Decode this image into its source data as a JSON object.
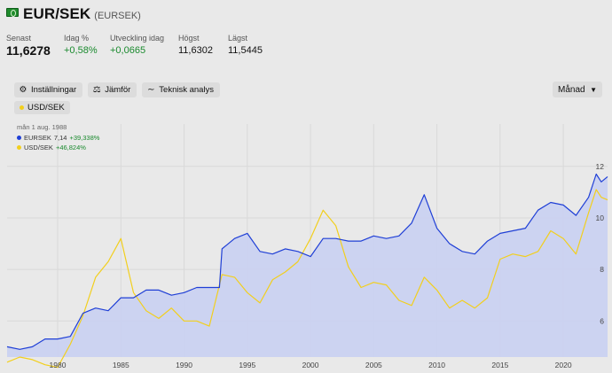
{
  "header": {
    "title": "EUR/SEK",
    "ticker": "(EURSEK)",
    "flag_icon": "money-flag-icon"
  },
  "stats": [
    {
      "label": "Senast",
      "value": "11,6278",
      "style": "big"
    },
    {
      "label": "Idag %",
      "value": "+0,58%",
      "style": "pos"
    },
    {
      "label": "Utveckling idag",
      "value": "+0,0665",
      "style": "pos"
    },
    {
      "label": "Högst",
      "value": "11,6302",
      "style": "plain"
    },
    {
      "label": "Lägst",
      "value": "11,5445",
      "style": "plain"
    }
  ],
  "toolbar": {
    "settings_label": "Inställningar",
    "compare_label": "Jämför",
    "technical_label": "Teknisk analys",
    "period_label": "Månad"
  },
  "compare_chip": {
    "label": "USD/SEK",
    "color": "#f2cf1d"
  },
  "legend": {
    "date": "mån 1 aug. 1988",
    "rows": [
      {
        "name": "EURSEK",
        "value": "7,14",
        "change": "+39,338%",
        "color": "#1f3fd6"
      },
      {
        "name": "USD/SEK",
        "value": "",
        "change": "+46,824%",
        "color": "#f2cf1d"
      }
    ]
  },
  "chart_data": {
    "type": "line",
    "x_unit": "year",
    "x_ticks": [
      1980,
      1985,
      1990,
      1995,
      2000,
      2005,
      2010,
      2015,
      2020
    ],
    "y_ticks": [
      6,
      8,
      10,
      12
    ],
    "xlim": [
      1976,
      2023.5
    ],
    "ylim": [
      4.6,
      13.3
    ],
    "grid": true,
    "series": [
      {
        "name": "EURSEK",
        "color": "#1f3fd6",
        "fill": "#c9d0f2",
        "points": [
          [
            1976.0,
            5.0
          ],
          [
            1977.0,
            4.9
          ],
          [
            1978.0,
            5.0
          ],
          [
            1979.0,
            5.3
          ],
          [
            1980.0,
            5.3
          ],
          [
            1981.0,
            5.4
          ],
          [
            1982.0,
            6.3
          ],
          [
            1983.0,
            6.5
          ],
          [
            1984.0,
            6.4
          ],
          [
            1985.0,
            6.9
          ],
          [
            1986.0,
            6.9
          ],
          [
            1987.0,
            7.2
          ],
          [
            1988.0,
            7.2
          ],
          [
            1989.0,
            7.0
          ],
          [
            1990.0,
            7.1
          ],
          [
            1991.0,
            7.3
          ],
          [
            1992.0,
            7.3
          ],
          [
            1992.8,
            7.3
          ],
          [
            1993.0,
            8.8
          ],
          [
            1994.0,
            9.2
          ],
          [
            1995.0,
            9.4
          ],
          [
            1996.0,
            8.7
          ],
          [
            1997.0,
            8.6
          ],
          [
            1998.0,
            8.8
          ],
          [
            1999.0,
            8.7
          ],
          [
            2000.0,
            8.5
          ],
          [
            2001.0,
            9.2
          ],
          [
            2002.0,
            9.2
          ],
          [
            2003.0,
            9.1
          ],
          [
            2004.0,
            9.1
          ],
          [
            2005.0,
            9.3
          ],
          [
            2006.0,
            9.2
          ],
          [
            2007.0,
            9.3
          ],
          [
            2008.0,
            9.8
          ],
          [
            2009.0,
            10.9
          ],
          [
            2010.0,
            9.6
          ],
          [
            2011.0,
            9.0
          ],
          [
            2012.0,
            8.7
          ],
          [
            2013.0,
            8.6
          ],
          [
            2014.0,
            9.1
          ],
          [
            2015.0,
            9.4
          ],
          [
            2016.0,
            9.5
          ],
          [
            2017.0,
            9.6
          ],
          [
            2018.0,
            10.3
          ],
          [
            2019.0,
            10.6
          ],
          [
            2020.0,
            10.5
          ],
          [
            2021.0,
            10.1
          ],
          [
            2022.0,
            10.8
          ],
          [
            2022.6,
            11.7
          ],
          [
            2023.0,
            11.4
          ],
          [
            2023.5,
            11.6
          ]
        ]
      },
      {
        "name": "USD/SEK",
        "color": "#f2cf1d",
        "points": [
          [
            1976.0,
            4.4
          ],
          [
            1977.0,
            4.6
          ],
          [
            1978.0,
            4.5
          ],
          [
            1979.0,
            4.3
          ],
          [
            1980.0,
            4.2
          ],
          [
            1981.0,
            5.1
          ],
          [
            1982.0,
            6.2
          ],
          [
            1983.0,
            7.7
          ],
          [
            1984.0,
            8.3
          ],
          [
            1985.0,
            9.2
          ],
          [
            1986.0,
            7.1
          ],
          [
            1987.0,
            6.4
          ],
          [
            1988.0,
            6.1
          ],
          [
            1989.0,
            6.5
          ],
          [
            1990.0,
            6.0
          ],
          [
            1991.0,
            6.0
          ],
          [
            1992.0,
            5.8
          ],
          [
            1993.0,
            7.8
          ],
          [
            1994.0,
            7.7
          ],
          [
            1995.0,
            7.1
          ],
          [
            1996.0,
            6.7
          ],
          [
            1997.0,
            7.6
          ],
          [
            1998.0,
            7.9
          ],
          [
            1999.0,
            8.3
          ],
          [
            2000.0,
            9.2
          ],
          [
            2001.0,
            10.3
          ],
          [
            2002.0,
            9.7
          ],
          [
            2003.0,
            8.1
          ],
          [
            2004.0,
            7.3
          ],
          [
            2005.0,
            7.5
          ],
          [
            2006.0,
            7.4
          ],
          [
            2007.0,
            6.8
          ],
          [
            2008.0,
            6.6
          ],
          [
            2009.0,
            7.7
          ],
          [
            2010.0,
            7.2
          ],
          [
            2011.0,
            6.5
          ],
          [
            2012.0,
            6.8
          ],
          [
            2013.0,
            6.5
          ],
          [
            2014.0,
            6.9
          ],
          [
            2015.0,
            8.4
          ],
          [
            2016.0,
            8.6
          ],
          [
            2017.0,
            8.5
          ],
          [
            2018.0,
            8.7
          ],
          [
            2019.0,
            9.5
          ],
          [
            2020.0,
            9.2
          ],
          [
            2021.0,
            8.6
          ],
          [
            2022.0,
            10.2
          ],
          [
            2022.6,
            11.1
          ],
          [
            2023.0,
            10.8
          ],
          [
            2023.5,
            10.7
          ]
        ]
      }
    ]
  }
}
